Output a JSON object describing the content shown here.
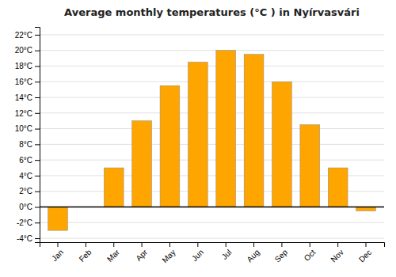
{
  "chart_data": {
    "type": "bar",
    "title": "Average monthly temperatures (°C ) in Nyírvasvári",
    "categories": [
      "Jan",
      "Feb",
      "Mar",
      "Apr",
      "May",
      "Jun",
      "Jul",
      "Aug",
      "Sep",
      "Oct",
      "Nov",
      "Dec"
    ],
    "values": [
      -3.0,
      0.0,
      5.0,
      11.0,
      15.5,
      18.5,
      20.0,
      19.5,
      16.0,
      10.5,
      5.0,
      -0.5
    ],
    "color": "#FFA500",
    "ylim": [
      -4.5,
      23
    ],
    "yticks": [
      {
        "value": -4,
        "label": "-4°C"
      },
      {
        "value": -2,
        "label": "-2°C"
      },
      {
        "value": 0,
        "label": "0°C"
      },
      {
        "value": 2,
        "label": "2°C"
      },
      {
        "value": 4,
        "label": "4°C"
      },
      {
        "value": 6,
        "label": "6°C"
      },
      {
        "value": 8,
        "label": "8°C"
      },
      {
        "value": 10,
        "label": "10°C"
      },
      {
        "value": 12,
        "label": "12°C"
      },
      {
        "value": 14,
        "label": "14°C"
      },
      {
        "value": 16,
        "label": "16°C"
      },
      {
        "value": 18,
        "label": "18°C"
      },
      {
        "value": 20,
        "label": "20°C"
      },
      {
        "value": 22,
        "label": "22°C"
      }
    ],
    "grid": true
  }
}
